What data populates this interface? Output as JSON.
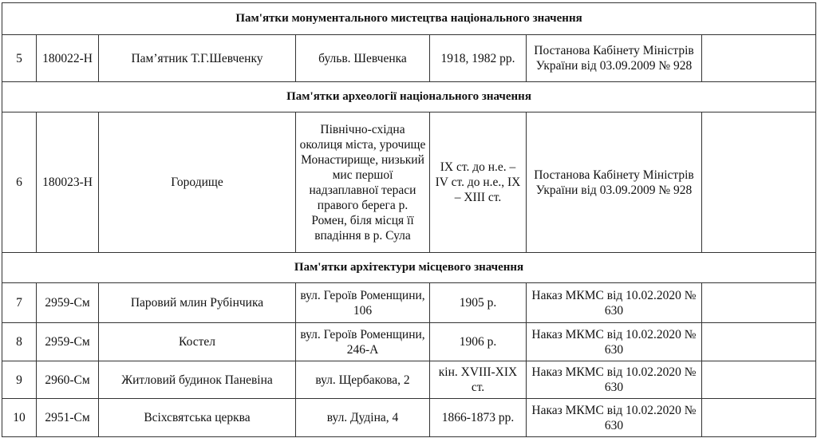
{
  "sections": [
    {
      "title": "Пам'ятки монументального мистецтва національного значення",
      "rows": [
        {
          "num": "5",
          "code": "180022-Н",
          "name": "Пам’ятник Т.Г.Шевченку",
          "address": "бульв. Шевченка",
          "date": "1918, 1982 рр.",
          "document": "Постанова Кабінету Міністрів  України від 03.09.2009 № 928",
          "note": ""
        }
      ]
    },
    {
      "title": "Пам'ятки археології національного значення",
      "rows": [
        {
          "num": "6",
          "code": "180023-Н",
          "name": "Городище",
          "address": "Північно-східна околиця міста, урочище Монастирище, низький мис першої надзаплавної тераси правого берега р. Ромен, біля місця її впадіння в р. Сула",
          "date": "ІХ ст. до н.е. – IV ст. до н.е., ІХ – ХІІІ ст.",
          "document": "Постанова Кабінету Міністрів  України від 03.09.2009 № 928",
          "note": ""
        }
      ]
    },
    {
      "title": "Пам'ятки архітектури місцевого значення",
      "rows": [
        {
          "num": "7",
          "code": "2959-См",
          "name": "Паровий млин Рубінчика",
          "address": "вул. Героїв Роменщини, 106",
          "date": "1905 р.",
          "document": "Наказ МКМС від 10.02.2020 № 630",
          "note": ""
        },
        {
          "num": "8",
          "code": "2959-См",
          "name": "Костел",
          "address": "вул. Героїв Роменщини, 246-А",
          "date": "1906 р.",
          "document": "Наказ МКМС від 10.02.2020 № 630",
          "note": ""
        },
        {
          "num": "9",
          "code": "2960-См",
          "name": "Житловий будинок Паневіна",
          "address": "вул. Щербакова, 2",
          "date": "кін. XVIII-XIX ст.",
          "document": "Наказ МКМС від 10.02.2020 № 630",
          "note": ""
        },
        {
          "num": "10",
          "code": "2951-См",
          "name": "Всіхсвятська церква",
          "address": "вул. Дудіна, 4",
          "date": "1866-1873 рр.",
          "document": "Наказ МКМС від 10.02.2020 № 630",
          "note": ""
        }
      ]
    }
  ]
}
